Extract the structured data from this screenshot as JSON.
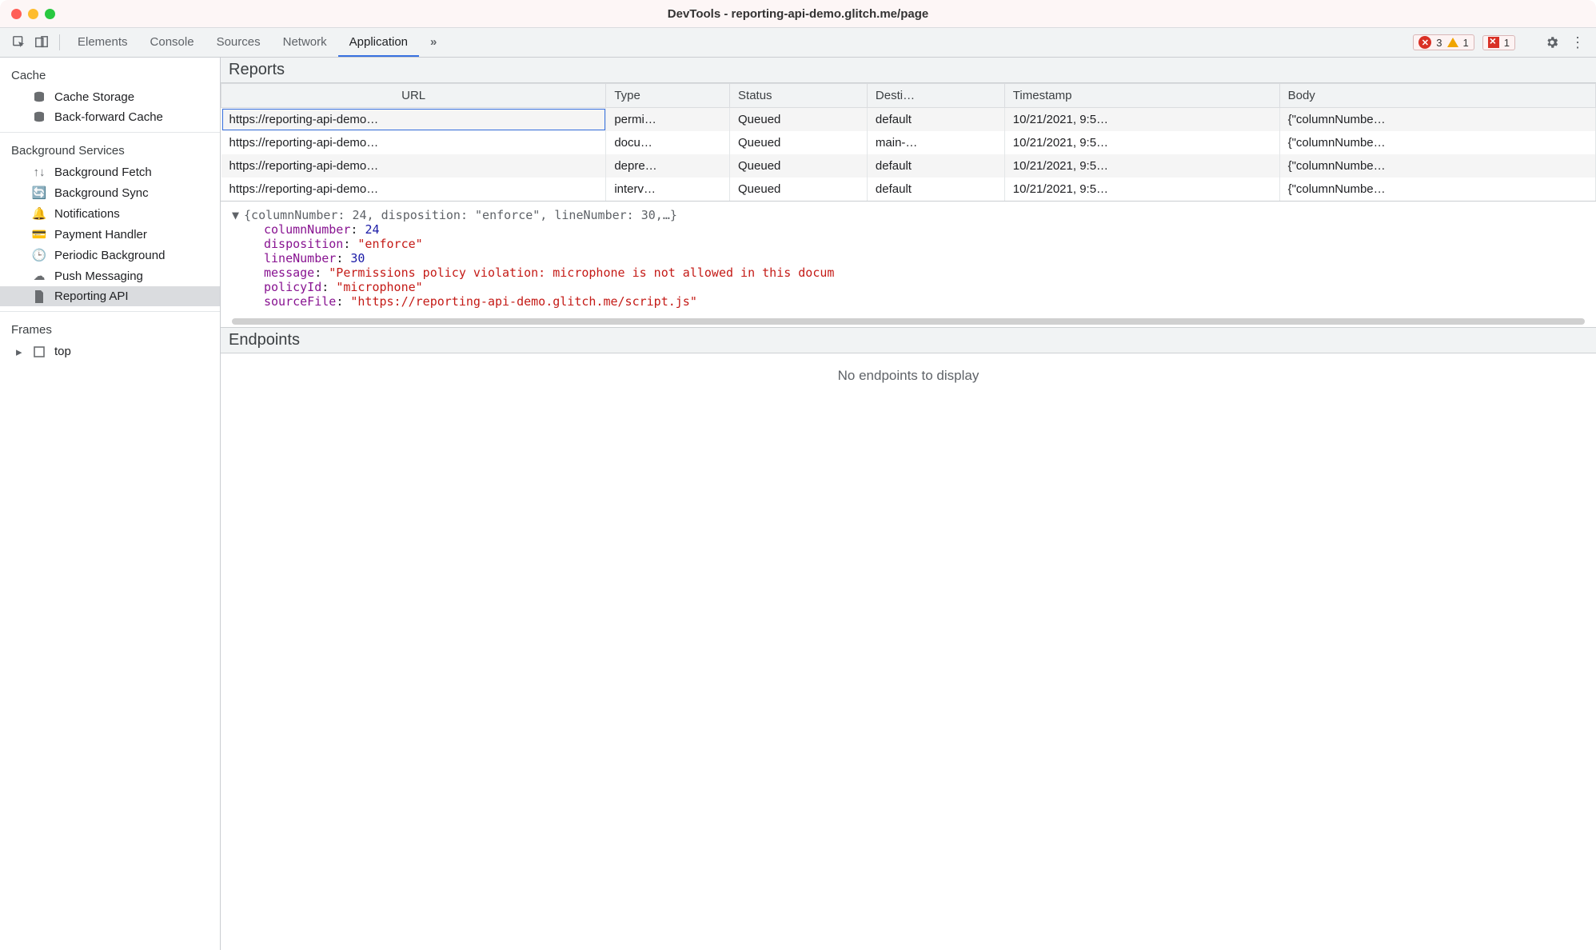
{
  "window": {
    "title": "DevTools - reporting-api-demo.glitch.me/page"
  },
  "toolbar": {
    "tabs": [
      "Elements",
      "Console",
      "Sources",
      "Network",
      "Application"
    ],
    "active_tab": "Application",
    "overflow_symbol": "»",
    "error_count": "3",
    "warning_count": "1",
    "issue_count": "1"
  },
  "sidebar": {
    "groups": [
      {
        "title": "Cache",
        "items": [
          {
            "label": "Cache Storage",
            "icon": "db"
          },
          {
            "label": "Back-forward Cache",
            "icon": "db"
          }
        ]
      },
      {
        "title": "Background Services",
        "items": [
          {
            "label": "Background Fetch",
            "icon": "updown"
          },
          {
            "label": "Background Sync",
            "icon": "sync"
          },
          {
            "label": "Notifications",
            "icon": "bell"
          },
          {
            "label": "Payment Handler",
            "icon": "card"
          },
          {
            "label": "Periodic Background",
            "icon": "clock"
          },
          {
            "label": "Push Messaging",
            "icon": "cloud"
          },
          {
            "label": "Reporting API",
            "icon": "file",
            "selected": true
          }
        ]
      },
      {
        "title": "Frames",
        "items": [
          {
            "label": "top",
            "icon": "frame",
            "expandable": true
          }
        ]
      }
    ]
  },
  "reports": {
    "heading": "Reports",
    "columns": [
      "URL",
      "Type",
      "Status",
      "Desti…",
      "Timestamp",
      "Body"
    ],
    "rows": [
      {
        "url": "https://reporting-api-demo…",
        "type": "permi…",
        "status": "Queued",
        "dest": "default",
        "ts": "10/21/2021, 9:5…",
        "body": "{\"columnNumbe…",
        "selected": true
      },
      {
        "url": "https://reporting-api-demo…",
        "type": "docu…",
        "status": "Queued",
        "dest": "main-…",
        "ts": "10/21/2021, 9:5…",
        "body": "{\"columnNumbe…"
      },
      {
        "url": "https://reporting-api-demo…",
        "type": "depre…",
        "status": "Queued",
        "dest": "default",
        "ts": "10/21/2021, 9:5…",
        "body": "{\"columnNumbe…"
      },
      {
        "url": "https://reporting-api-demo…",
        "type": "interv…",
        "status": "Queued",
        "dest": "default",
        "ts": "10/21/2021, 9:5…",
        "body": "{\"columnNumbe…"
      }
    ],
    "col_widths": [
      "28%",
      "9%",
      "10%",
      "10%",
      "20%",
      "23%"
    ]
  },
  "detail": {
    "header": "{columnNumber: 24, disposition: \"enforce\", lineNumber: 30,…}",
    "props": [
      {
        "k": "columnNumber",
        "v": "24",
        "kind": "num"
      },
      {
        "k": "disposition",
        "v": "\"enforce\"",
        "kind": "str"
      },
      {
        "k": "lineNumber",
        "v": "30",
        "kind": "num"
      },
      {
        "k": "message",
        "v": "\"Permissions policy violation: microphone is not allowed in this docum",
        "kind": "str"
      },
      {
        "k": "policyId",
        "v": "\"microphone\"",
        "kind": "str"
      },
      {
        "k": "sourceFile",
        "v": "\"https://reporting-api-demo.glitch.me/script.js\"",
        "kind": "str"
      }
    ]
  },
  "endpoints": {
    "heading": "Endpoints",
    "empty_text": "No endpoints to display"
  },
  "colors": {
    "accent": "#3871e0",
    "key": "#881391",
    "num": "#1a1aa6",
    "str": "#c41a16"
  }
}
